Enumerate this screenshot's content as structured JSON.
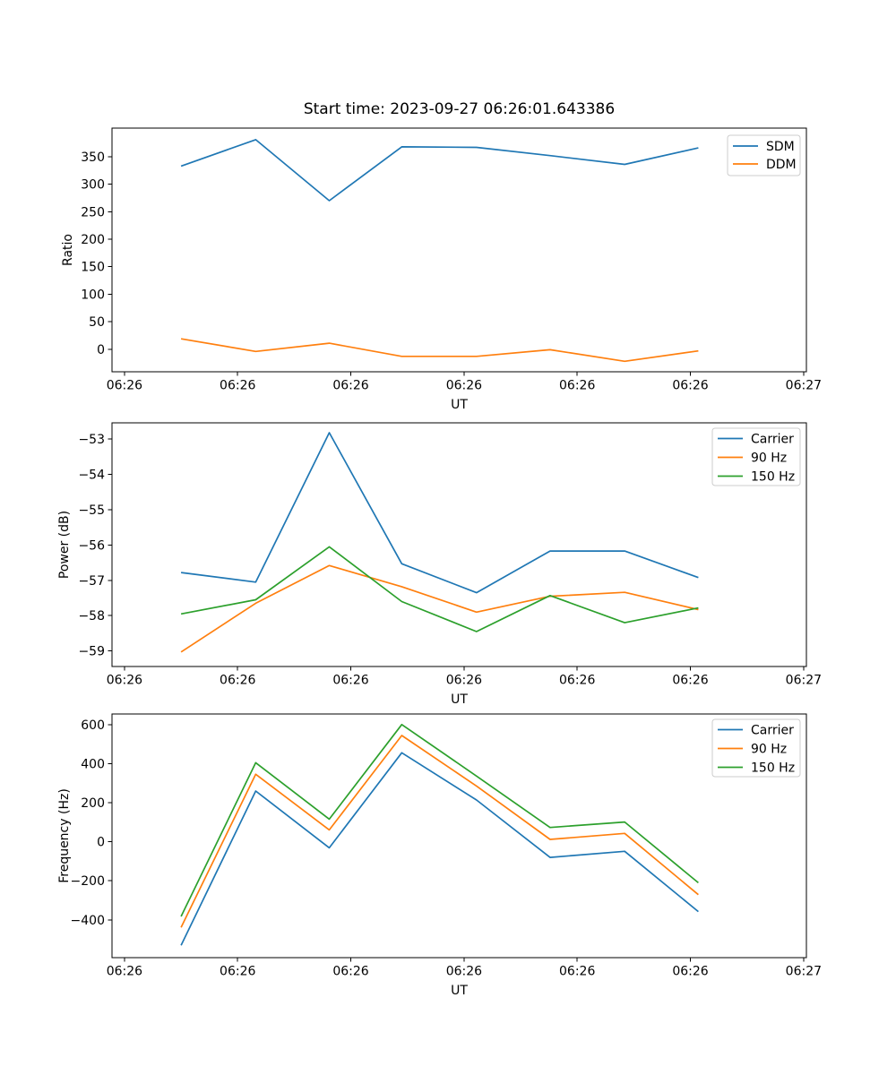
{
  "title": "Start time: 2023-09-27 06:26:01.643386",
  "colors": {
    "blue": "#1f77b4",
    "orange": "#ff7f0e",
    "green": "#2ca02c",
    "axis": "#000000",
    "legend_border": "#cccccc",
    "background": "#ffffff"
  },
  "chart_data": [
    {
      "type": "line",
      "title": "Start time: 2023-09-27 06:26:01.643386",
      "xlabel": "UT",
      "ylabel": "Ratio",
      "grid": false,
      "legend_position": "upper right",
      "x_seconds": [
        5.0,
        11.6,
        18.1,
        24.5,
        31.1,
        37.6,
        44.2,
        50.7
      ],
      "xlim_seconds": [
        -1.1,
        60.25
      ],
      "xticks": [
        {
          "s": 0,
          "label": "06:26"
        },
        {
          "s": 10,
          "label": "06:26"
        },
        {
          "s": 20,
          "label": "06:26"
        },
        {
          "s": 30,
          "label": "06:26"
        },
        {
          "s": 40,
          "label": "06:26"
        },
        {
          "s": 50,
          "label": "06:26"
        },
        {
          "s": 60,
          "label": "06:27"
        }
      ],
      "ylim": [
        -41,
        402
      ],
      "yticks": [
        {
          "v": 0,
          "label": "0"
        },
        {
          "v": 50,
          "label": "50"
        },
        {
          "v": 100,
          "label": "100"
        },
        {
          "v": 150,
          "label": "150"
        },
        {
          "v": 200,
          "label": "200"
        },
        {
          "v": 250,
          "label": "250"
        },
        {
          "v": 300,
          "label": "300"
        },
        {
          "v": 350,
          "label": "350"
        }
      ],
      "series": [
        {
          "name": "SDM",
          "color": "#1f77b4",
          "values": [
            333,
            381,
            270,
            368,
            367,
            352,
            336,
            366
          ]
        },
        {
          "name": "DDM",
          "color": "#ff7f0e",
          "values": [
            19,
            -4,
            11,
            -13,
            -13,
            -1,
            -22,
            -3
          ]
        }
      ]
    },
    {
      "type": "line",
      "title": "",
      "xlabel": "UT",
      "ylabel": "Power (dB)",
      "grid": false,
      "legend_position": "upper right",
      "x_seconds": [
        5.0,
        11.6,
        18.1,
        24.5,
        31.1,
        37.6,
        44.2,
        50.7
      ],
      "xlim_seconds": [
        -1.1,
        60.25
      ],
      "xticks": [
        {
          "s": 0,
          "label": "06:26"
        },
        {
          "s": 10,
          "label": "06:26"
        },
        {
          "s": 20,
          "label": "06:26"
        },
        {
          "s": 30,
          "label": "06:26"
        },
        {
          "s": 40,
          "label": "06:26"
        },
        {
          "s": 50,
          "label": "06:26"
        },
        {
          "s": 60,
          "label": "06:27"
        }
      ],
      "ylim": [
        -59.44,
        -52.54
      ],
      "yticks": [
        {
          "v": -53,
          "label": "−53"
        },
        {
          "v": -54,
          "label": "−54"
        },
        {
          "v": -55,
          "label": "−55"
        },
        {
          "v": -56,
          "label": "−56"
        },
        {
          "v": -57,
          "label": "−57"
        },
        {
          "v": -58,
          "label": "−58"
        },
        {
          "v": -59,
          "label": "−59"
        }
      ],
      "series": [
        {
          "name": "Carrier",
          "color": "#1f77b4",
          "values": [
            -56.78,
            -57.05,
            -52.82,
            -56.53,
            -57.35,
            -56.17,
            -56.17,
            -56.92
          ]
        },
        {
          "name": "90 Hz",
          "color": "#ff7f0e",
          "values": [
            -59.03,
            -57.65,
            -56.58,
            -57.18,
            -57.9,
            -57.45,
            -57.34,
            -57.83
          ]
        },
        {
          "name": "150 Hz",
          "color": "#2ca02c",
          "values": [
            -57.95,
            -57.55,
            -56.05,
            -57.6,
            -58.45,
            -57.43,
            -58.2,
            -57.78
          ]
        }
      ]
    },
    {
      "type": "line",
      "title": "",
      "xlabel": "UT",
      "ylabel": "Frequency (Hz)",
      "grid": false,
      "legend_position": "upper right",
      "x_seconds": [
        5.0,
        11.6,
        18.1,
        24.5,
        31.1,
        37.6,
        44.2,
        50.7
      ],
      "xlim_seconds": [
        -1.1,
        60.25
      ],
      "xticks": [
        {
          "s": 0,
          "label": "06:26"
        },
        {
          "s": 10,
          "label": "06:26"
        },
        {
          "s": 20,
          "label": "06:26"
        },
        {
          "s": 30,
          "label": "06:26"
        },
        {
          "s": 40,
          "label": "06:26"
        },
        {
          "s": 50,
          "label": "06:26"
        },
        {
          "s": 60,
          "label": "06:27"
        }
      ],
      "ylim": [
        -594,
        655
      ],
      "yticks": [
        {
          "v": 600,
          "label": "600"
        },
        {
          "v": 400,
          "label": "400"
        },
        {
          "v": 200,
          "label": "200"
        },
        {
          "v": 0,
          "label": "0"
        },
        {
          "v": -200,
          "label": "−200"
        },
        {
          "v": -400,
          "label": "−400"
        }
      ],
      "series": [
        {
          "name": "Carrier",
          "color": "#1f77b4",
          "values": [
            -531,
            260,
            -31,
            456,
            214,
            -80,
            -49,
            -358
          ]
        },
        {
          "name": "90 Hz",
          "color": "#ff7f0e",
          "values": [
            -439,
            346,
            61,
            545,
            286,
            12,
            43,
            -271
          ]
        },
        {
          "name": "150 Hz",
          "color": "#2ca02c",
          "values": [
            -383,
            405,
            116,
            601,
            337,
            73,
            101,
            -210
          ]
        }
      ]
    }
  ]
}
